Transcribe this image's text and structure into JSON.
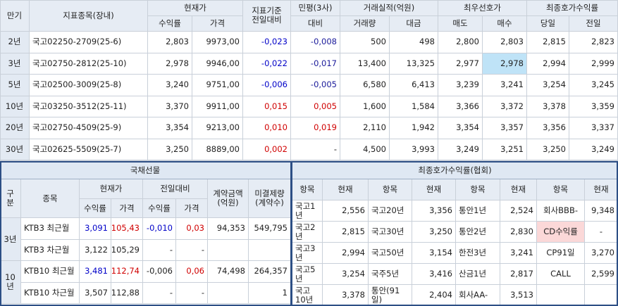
{
  "bond_table": {
    "header_top": [
      "만기",
      "지표종목(장내)",
      "현재가",
      "지표기준\n전일대비",
      "민평(3사)",
      "거래실적(억원)",
      "최우선호가",
      "최종호가수익률"
    ],
    "header_sub": [
      "수익률",
      "가격",
      "대비",
      "거래량",
      "대금",
      "매도",
      "매수",
      "당일",
      "전일"
    ],
    "rows": [
      [
        "2년",
        "국고02250-2709(25-6)",
        "2,803",
        "9973,00",
        "-0,023",
        "-0,008",
        "500",
        "498",
        "2,800",
        "2,803",
        "2,815",
        "2,823"
      ],
      [
        "3년",
        "국고02750-2812(25-10)",
        "2,978",
        "9946,00",
        "-0,022",
        "-0,017",
        "13,400",
        "13,325",
        "2,977",
        "2,978",
        "2,994",
        "2,999"
      ],
      [
        "5년",
        "국고02500-3009(25-8)",
        "3,240",
        "9751,00",
        "-0,006",
        "-0,005",
        "6,580",
        "6,413",
        "3,239",
        "3,241",
        "3,254",
        "3,245"
      ],
      [
        "10년",
        "국고03250-3512(25-11)",
        "3,370",
        "9911,00",
        "0,015",
        "0,005",
        "1,600",
        "1,584",
        "3,366",
        "3,372",
        "3,378",
        "3,359"
      ],
      [
        "20년",
        "국고02750-4509(25-9)",
        "3,354",
        "9213,00",
        "0,010",
        "0,019",
        "2,110",
        "1,942",
        "3,354",
        "3,357",
        "3,356",
        "3,337"
      ],
      [
        "30년",
        "국고02625-5509(25-7)",
        "3,250",
        "8889,00",
        "0,002",
        "-",
        "4,500",
        "3,993",
        "3,249",
        "3,251",
        "3,250",
        "3,249"
      ]
    ]
  },
  "futures": {
    "title": "국채선물",
    "header_top": [
      "구분",
      "종목",
      "현재가",
      "전일대비",
      "계약금액\n(억원)",
      "미결제량\n(계약수)"
    ],
    "header_sub": [
      "수익률",
      "가격",
      "수익률",
      "가격"
    ],
    "rows": [
      [
        "3년",
        "KTB3 최근월",
        "3,091",
        "105,43",
        "-0,010",
        "0,03",
        "94,353",
        "549,795"
      ],
      [
        null,
        "KTB3 차근월",
        "3,122",
        "105,29",
        "-",
        "-",
        null,
        null
      ],
      [
        "10년",
        "KTB10 최근월",
        "3,481",
        "112,74",
        "-0,006",
        "0,06",
        "74,498",
        "264,357"
      ],
      [
        null,
        "KTB10 차근월",
        "3,507",
        "112,88",
        "-",
        "-",
        null,
        "1"
      ]
    ]
  },
  "final_yield": {
    "title": "최종호가수익률(협회)",
    "header": [
      "항목",
      "현재",
      "항목",
      "현재",
      "항목",
      "현재",
      "항목",
      "현재"
    ],
    "rows": [
      [
        "국고1년",
        "2,556",
        "국고20년",
        "3,356",
        "통안1년",
        "2,524",
        "회사BBB-",
        "9,348"
      ],
      [
        "국고2년",
        "2,815",
        "국고30년",
        "3,250",
        "통안2년",
        "2,830",
        "CD수익률",
        "-"
      ],
      [
        "국고3년",
        "2,994",
        "국고50년",
        "3,154",
        "한전3년",
        "3,241",
        "CP91일",
        "3,270"
      ],
      [
        "국고5년",
        "3,254",
        "국주5년",
        "3,416",
        "산금1년",
        "2,817",
        "CALL",
        "2,599"
      ],
      [
        "국고10년",
        "3,378",
        "통안(91일)",
        "2,404",
        "회사AA-",
        "3,513",
        null,
        null
      ]
    ]
  }
}
